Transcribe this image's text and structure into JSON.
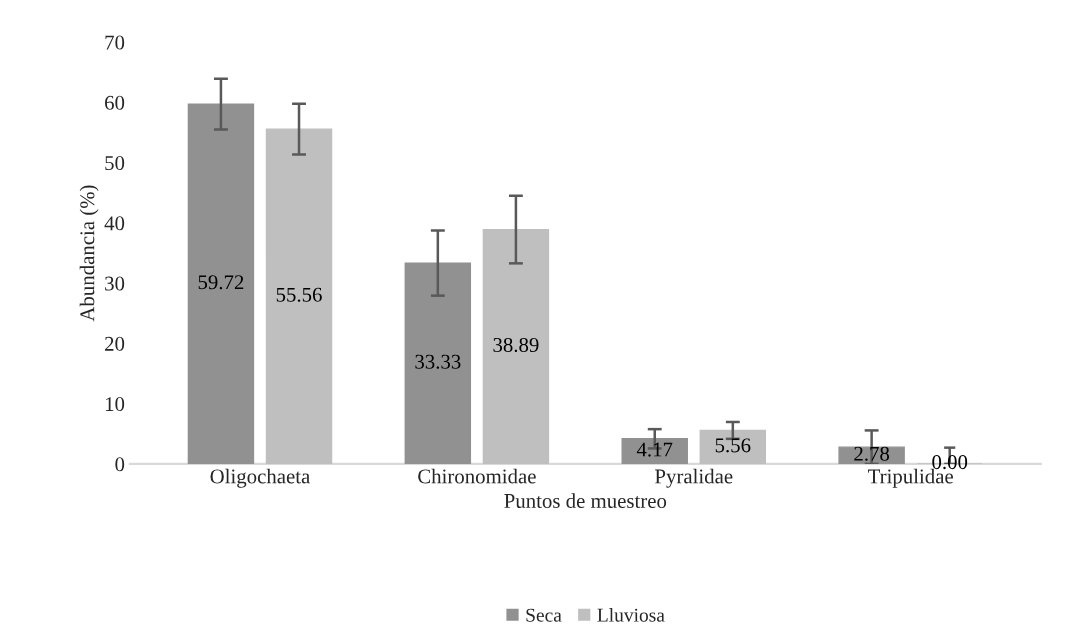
{
  "chart_data": {
    "type": "bar",
    "xlabel": "Puntos de muestreo",
    "ylabel": "Abundancia (%)",
    "categories": [
      "Oligochaeta",
      "Chironomidae",
      "Pyralidae",
      "Tripulidae"
    ],
    "series": [
      {
        "name": "Seca",
        "color": "#919191",
        "values": [
          59.72,
          33.33,
          4.17,
          2.78
        ],
        "value_labels": [
          "59.72",
          "33.33",
          "4.17",
          "2.78"
        ],
        "errors": [
          4.2,
          5.4,
          1.6,
          2.78
        ]
      },
      {
        "name": "Lluviosa",
        "color": "#bfbfbf",
        "values": [
          55.56,
          38.89,
          5.56,
          0.0
        ],
        "value_labels": [
          "55.56",
          "38.89",
          "5.56",
          "0.00"
        ],
        "errors": [
          4.2,
          5.6,
          1.4,
          [
            0,
            2.7
          ]
        ]
      }
    ],
    "ylim": [
      0,
      70
    ],
    "yticks": [
      0,
      10,
      20,
      30,
      40,
      50,
      60,
      70
    ],
    "legend": "bottom",
    "grid": false
  }
}
